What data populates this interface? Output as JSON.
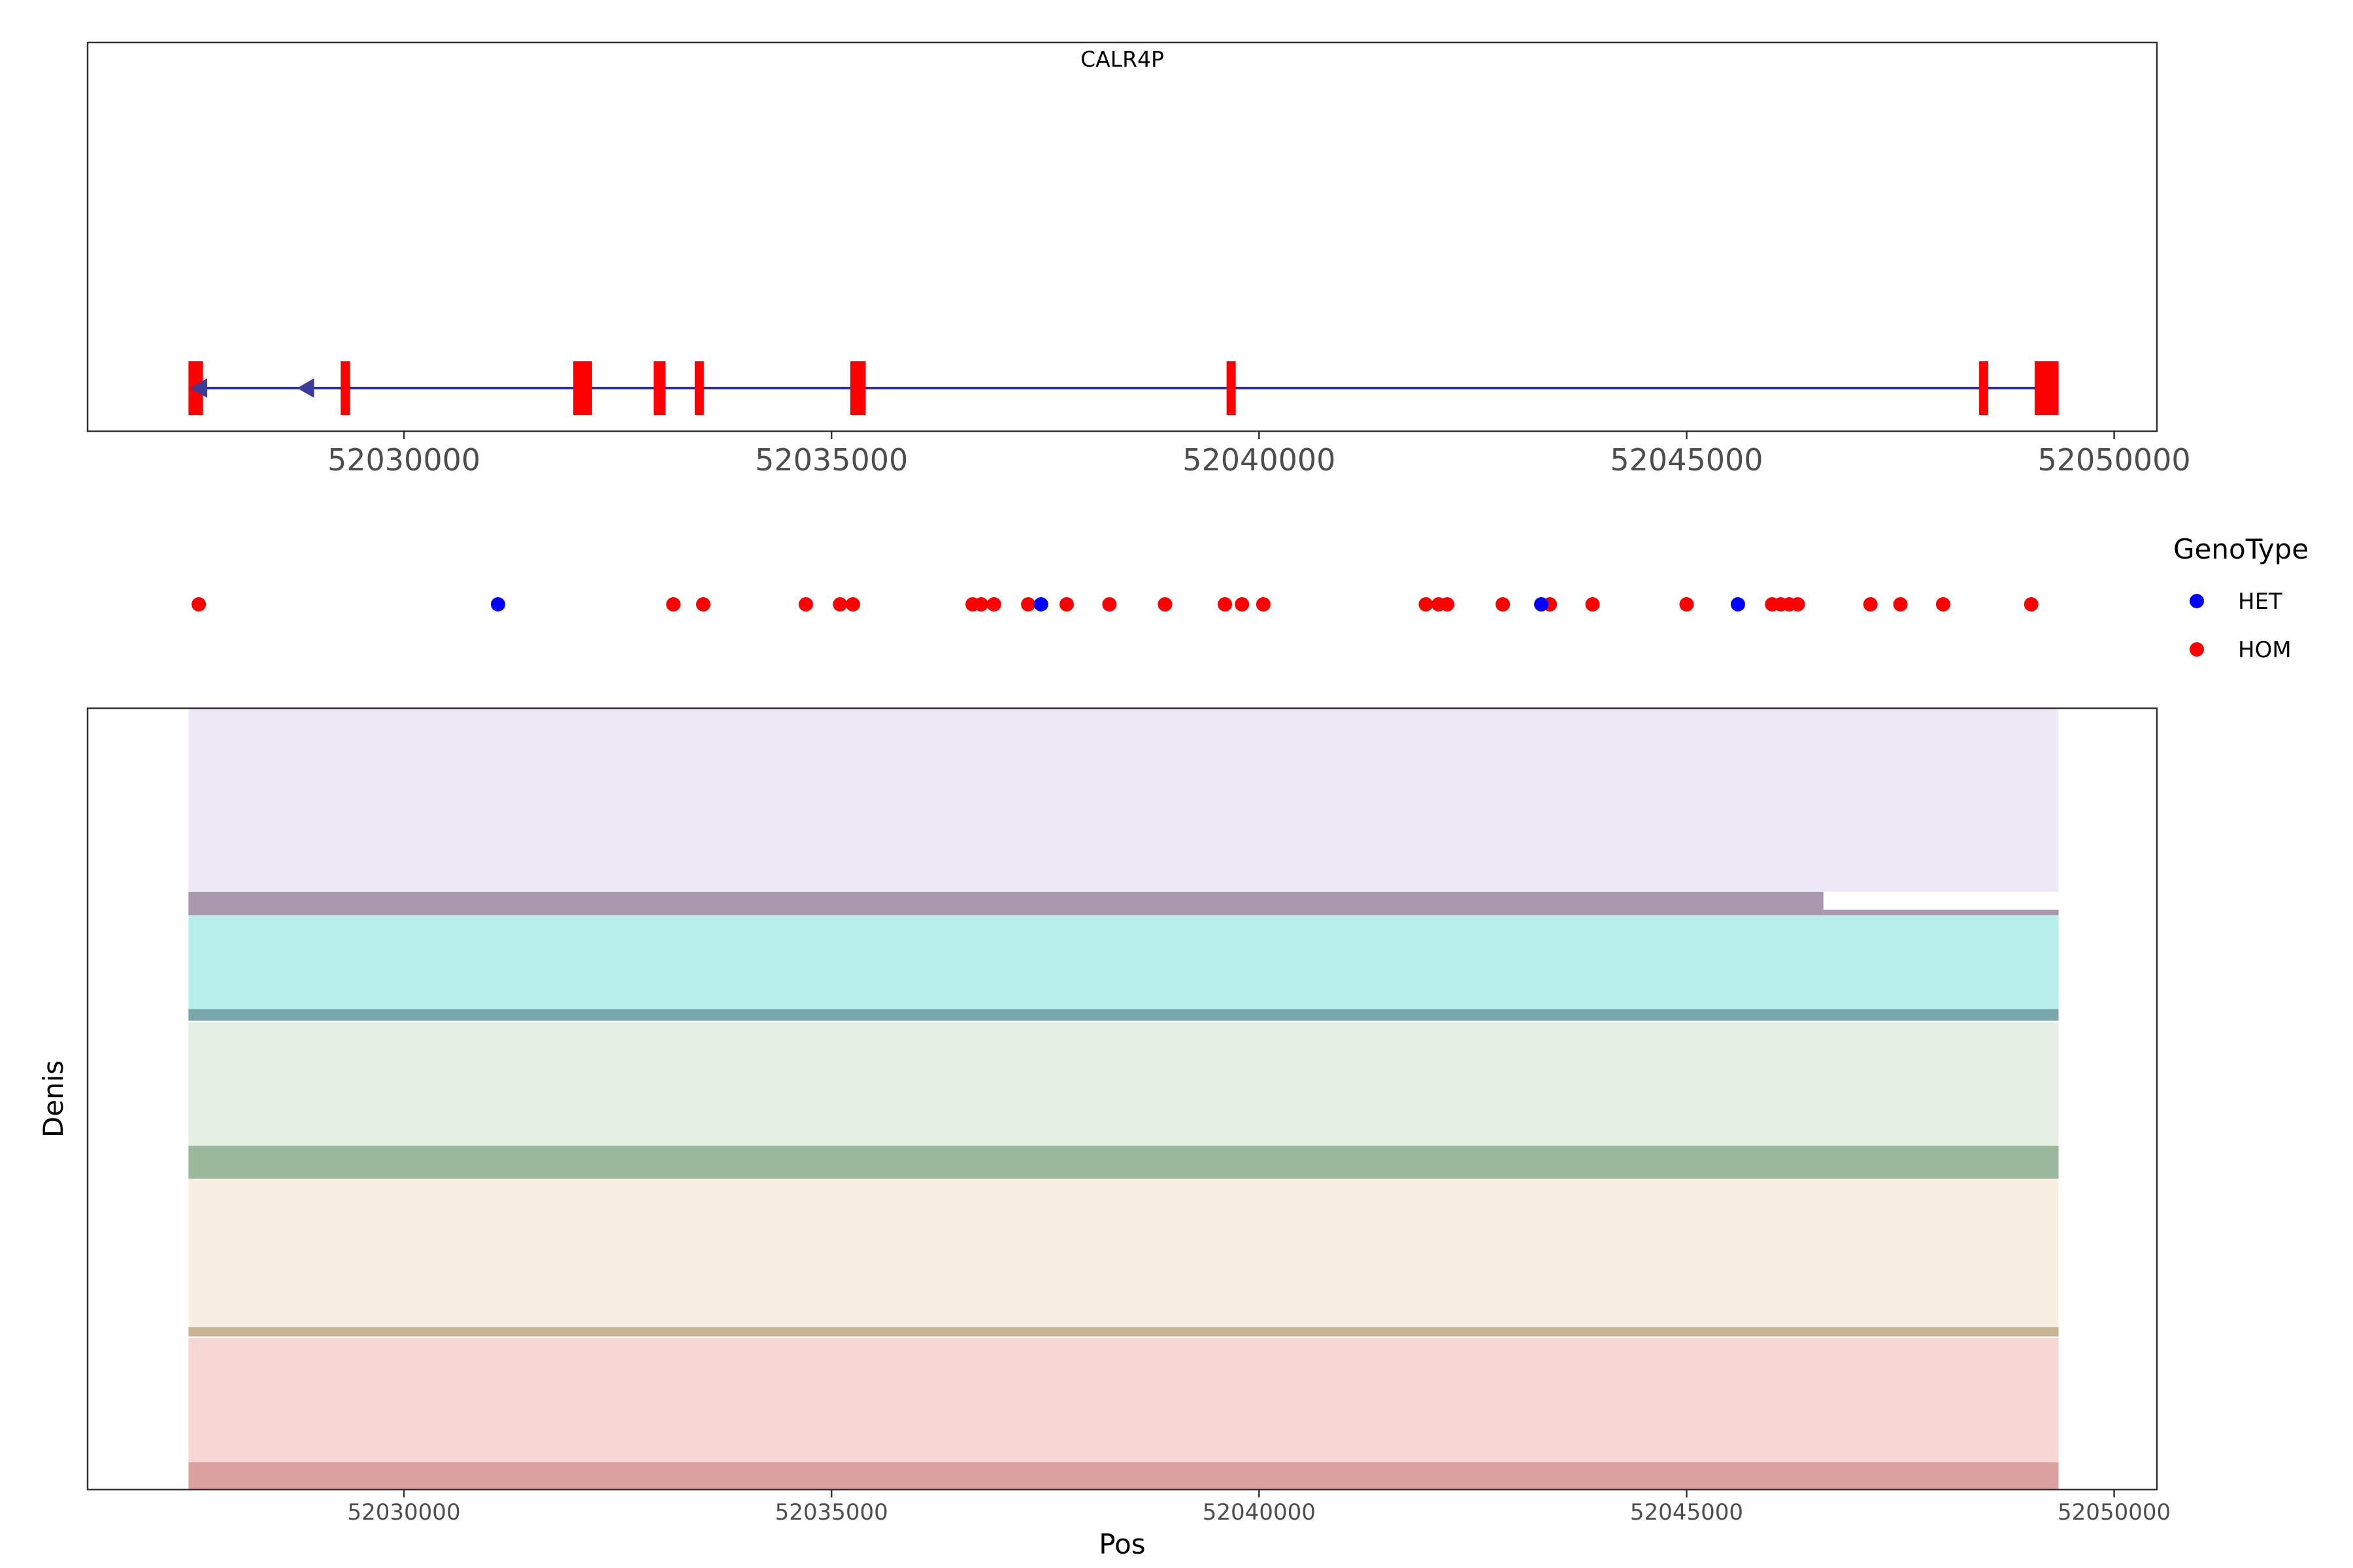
{
  "chart_data": [
    {
      "type": "gene_track",
      "title": "CALR4P",
      "strand": "-",
      "xlim": [
        52026300,
        52050500
      ],
      "x_ticks": [
        52030000,
        52035000,
        52040000,
        52045000,
        52050000
      ],
      "x_tick_labels": [
        "52030000",
        "52035000",
        "52040000",
        "52045000",
        "52050000"
      ],
      "gene_span": [
        52027500,
        52049350
      ],
      "arrow_positions": [
        52027500,
        52028750
      ],
      "exons": [
        {
          "start": 52027480,
          "end": 52027650
        },
        {
          "start": 52029260,
          "end": 52029370
        },
        {
          "start": 52031980,
          "end": 52032200
        },
        {
          "start": 52032920,
          "end": 52033060
        },
        {
          "start": 52033400,
          "end": 52033480
        },
        {
          "start": 52035220,
          "end": 52035400
        },
        {
          "start": 52039620,
          "end": 52039720
        },
        {
          "start": 52048420,
          "end": 52048510
        },
        {
          "start": 52049070,
          "end": 52049350
        }
      ],
      "colors": {
        "exon": "#ff0000",
        "intron": "#2b2ba8",
        "arrow": "#3b3b9a"
      }
    },
    {
      "type": "scatter",
      "xlim": [
        52026300,
        52050500
      ],
      "legend_title": "GenoType",
      "legend_position": "right",
      "series": [
        {
          "name": "HET",
          "color": "#0000ff",
          "x": [
            52031100,
            52037450,
            52043300,
            52045600
          ]
        },
        {
          "name": "HOM",
          "color": "#ff0000",
          "x": [
            52027600,
            52033150,
            52033500,
            52034700,
            52035100,
            52035250,
            52036650,
            52036750,
            52036900,
            52037300,
            52037750,
            52038250,
            52038900,
            52039600,
            52039800,
            52040050,
            52041950,
            52042100,
            52042200,
            52042850,
            52043400,
            52043900,
            52045000,
            52046000,
            52046100,
            52046200,
            52046300,
            52047150,
            52047500,
            52048000,
            52049030
          ]
        }
      ]
    },
    {
      "type": "area",
      "xlim": [
        52026300,
        52050500
      ],
      "xlabel": "Pos",
      "ylabel": "Denis",
      "x_ticks": [
        52030000,
        52035000,
        52040000,
        52045000,
        52050000
      ],
      "x_tick_labels": [
        "52030000",
        "52035000",
        "52040000",
        "52045000",
        "52050000"
      ],
      "x_range": [
        52027480,
        52049350
      ],
      "bands": [
        {
          "color": "#efe9f7",
          "y": [
            0.765,
            1.0
          ]
        },
        {
          "color": "#a898ae",
          "y": [
            0.735,
            0.765
          ],
          "step_end": 52046600,
          "y_after": [
            0.735,
            0.742
          ]
        },
        {
          "color": "#b8eeea",
          "y": [
            0.615,
            0.735
          ]
        },
        {
          "color": "#7aa7ad",
          "y": [
            0.6,
            0.615
          ]
        },
        {
          "color": "#e5efe4",
          "y": [
            0.44,
            0.598
          ]
        },
        {
          "color": "#99b89c",
          "y": [
            0.398,
            0.44
          ]
        },
        {
          "color": "#f8efe2",
          "y": [
            0.208,
            0.398
          ]
        },
        {
          "color": "#c6b394",
          "y": [
            0.196,
            0.208
          ]
        },
        {
          "color": "#f7d8d4",
          "y": [
            0.035,
            0.194
          ]
        },
        {
          "color": "#d9a09f",
          "y": [
            0.0,
            0.035
          ]
        }
      ]
    }
  ]
}
